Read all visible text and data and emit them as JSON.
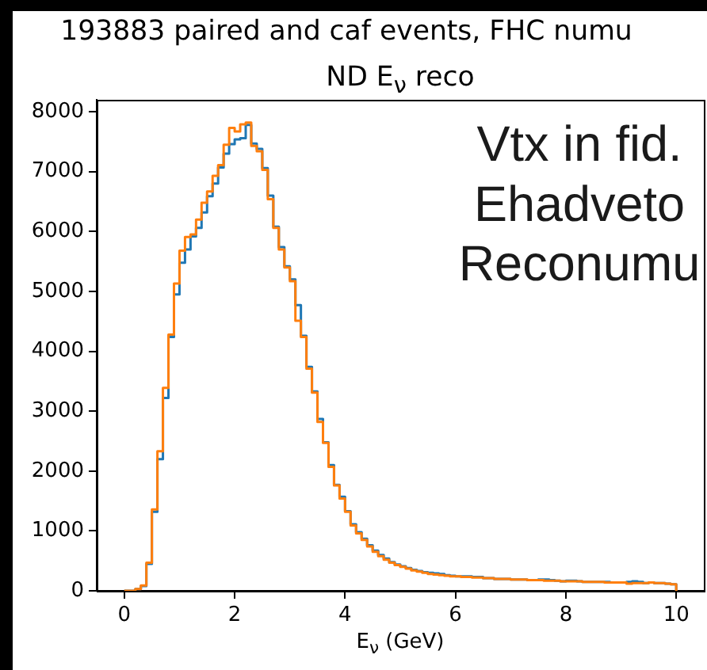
{
  "chart_data": {
    "type": "histogram",
    "title": "193883 paired and caf events, FHC numu",
    "subtitle": "ND E$_{ν}$ reco",
    "xlabel": "E$_{ν}$ (GeV)",
    "annotations": [
      "Vtx in fid.",
      "Ehadveto",
      "Reconumu"
    ],
    "bins": [
      0,
      0.1,
      0.2,
      0.3,
      0.4,
      0.5,
      0.6,
      0.7,
      0.8,
      0.9,
      1,
      1.1,
      1.2,
      1.3,
      1.4,
      1.5,
      1.6,
      1.7,
      1.8,
      1.9,
      2,
      2.1,
      2.2,
      2.3,
      2.4,
      2.5,
      2.6,
      2.7,
      2.8,
      2.9,
      3,
      3.1,
      3.2,
      3.3,
      3.4,
      3.5,
      3.6,
      3.7,
      3.8,
      3.9,
      4,
      4.1,
      4.2,
      4.3,
      4.4,
      4.5,
      4.6,
      4.7,
      4.8,
      4.9,
      5,
      5.1,
      5.2,
      5.3,
      5.4,
      5.5,
      5.6,
      5.7,
      5.8,
      5.9,
      6,
      6.1,
      6.2,
      6.3,
      6.4,
      6.5,
      6.6,
      6.7,
      6.8,
      6.9,
      7,
      7.1,
      7.2,
      7.3,
      7.4,
      7.5,
      7.6,
      7.7,
      7.8,
      7.9,
      8,
      8.1,
      8.2,
      8.3,
      8.4,
      8.5,
      8.6,
      8.7,
      8.8,
      8.9,
      9,
      9.1,
      9.2,
      9.3,
      9.4,
      9.5,
      9.6,
      9.7,
      9.8,
      9.9,
      10
    ],
    "series": [
      {
        "color": "#1f77b4",
        "values": [
          0,
          0,
          30,
          80,
          450,
          1320,
          2200,
          3220,
          4240,
          4950,
          5480,
          5700,
          5920,
          6060,
          6320,
          6590,
          6800,
          7070,
          7300,
          7460,
          7540,
          7560,
          7780,
          7470,
          7380,
          7060,
          6600,
          6080,
          5740,
          5420,
          5200,
          4770,
          4260,
          3740,
          3330,
          2870,
          2480,
          2100,
          1770,
          1570,
          1330,
          1110,
          980,
          870,
          760,
          670,
          600,
          540,
          480,
          440,
          410,
          380,
          350,
          330,
          310,
          300,
          290,
          280,
          260,
          250,
          240,
          240,
          240,
          230,
          230,
          210,
          210,
          200,
          200,
          200,
          190,
          190,
          190,
          180,
          180,
          190,
          190,
          180,
          170,
          160,
          170,
          170,
          160,
          150,
          150,
          150,
          150,
          150,
          140,
          140,
          140,
          150,
          160,
          150,
          130,
          140,
          130,
          130,
          120,
          110
        ]
      },
      {
        "color": "#ff7f0e",
        "values": [
          0,
          0,
          30,
          90,
          470,
          1360,
          2330,
          3390,
          4280,
          5130,
          5680,
          5910,
          5950,
          6200,
          6480,
          6670,
          6930,
          7110,
          7450,
          7730,
          7670,
          7790,
          7820,
          7430,
          7340,
          7030,
          6540,
          6060,
          5700,
          5400,
          5170,
          4510,
          4240,
          3710,
          3310,
          2820,
          2470,
          2070,
          1760,
          1540,
          1320,
          1090,
          960,
          850,
          740,
          650,
          580,
          520,
          470,
          430,
          400,
          370,
          340,
          320,
          300,
          280,
          270,
          260,
          250,
          240,
          240,
          230,
          230,
          220,
          220,
          210,
          210,
          200,
          200,
          200,
          190,
          190,
          190,
          180,
          180,
          180,
          170,
          170,
          170,
          160,
          160,
          160,
          160,
          150,
          150,
          150,
          150,
          140,
          140,
          140,
          140,
          120,
          130,
          130,
          130,
          140,
          130,
          130,
          120,
          110
        ]
      }
    ],
    "xlim": [
      -0.5,
      10.5
    ],
    "xticks": [
      0,
      2,
      4,
      6,
      8,
      10
    ],
    "ylim": [
      0,
      8200
    ],
    "yticks": [
      0,
      1000,
      2000,
      3000,
      4000,
      5000,
      6000,
      7000,
      8000
    ]
  }
}
